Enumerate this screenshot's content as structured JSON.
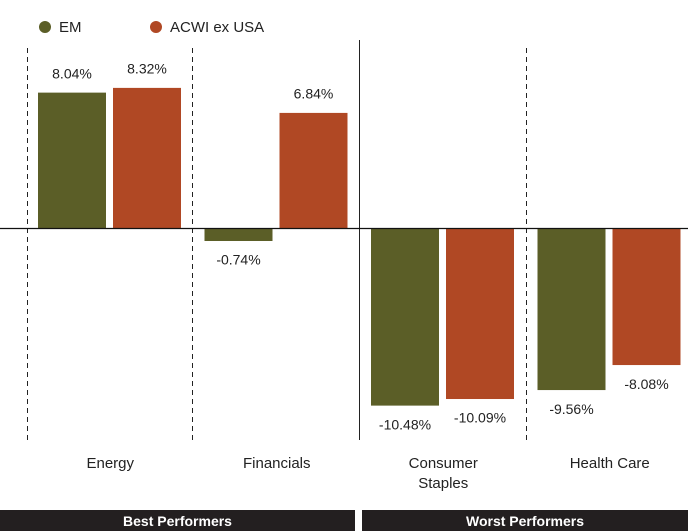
{
  "chart_data": {
    "type": "bar",
    "categories": [
      "Energy",
      "Financials",
      "Consumer Staples",
      "Health Care"
    ],
    "series": [
      {
        "name": "EM",
        "color": "#5b5e27",
        "values": [
          8.04,
          -0.74,
          -10.48,
          -9.56
        ],
        "value_labels": [
          "8.04%",
          "-0.74%",
          "-10.48%",
          "-9.56%"
        ]
      },
      {
        "name": "ACWI ex USA",
        "color": "#b04824",
        "values": [
          8.32,
          6.84,
          -10.09,
          -8.08
        ],
        "value_labels": [
          "8.32%",
          "6.84%",
          "-10.09%",
          "-8.08%"
        ]
      }
    ],
    "groups": [
      "Best Performers",
      "Worst Performers"
    ],
    "legend": "top-left"
  }
}
